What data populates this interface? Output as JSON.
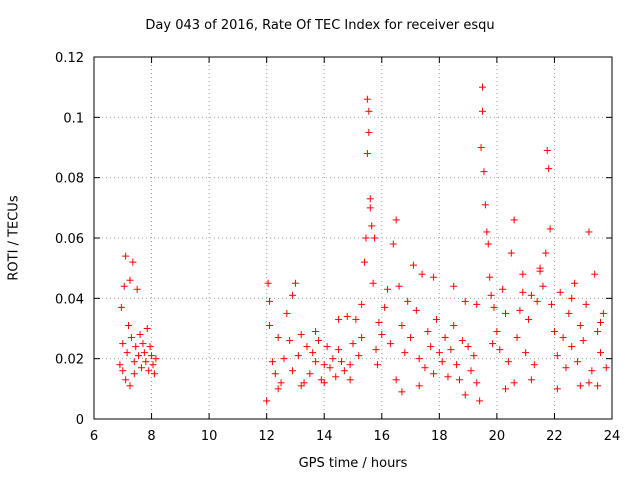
{
  "chart_data": {
    "type": "scatter",
    "title": "Day 043 of 2016, Rate Of TEC Index for receiver esqu",
    "xlabel": "GPS time / hours",
    "ylabel": "ROTI / TECUs",
    "xlim": [
      6,
      24
    ],
    "ylim": [
      0,
      0.12
    ],
    "xticks": [
      "6",
      "8",
      "10",
      "12",
      "14",
      "16",
      "18",
      "20",
      "22",
      "24"
    ],
    "yticks": [
      "0",
      "0.02",
      "0.04",
      "0.06",
      "0.08",
      "0.1",
      "0.12"
    ],
    "grid": true,
    "marker": "+",
    "color": "#ff0000",
    "series": [
      {
        "name": "ROTI",
        "x": [
          6.9,
          6.95,
          7.0,
          7.05,
          7.1,
          7.15,
          7.2,
          7.25,
          7.3,
          7.35,
          7.4,
          7.45,
          7.5,
          7.55,
          7.6,
          7.65,
          7.7,
          7.75,
          7.8,
          7.85,
          7.9,
          7.95,
          8.0,
          8.05,
          8.1,
          8.15,
          7.1,
          7.25,
          7.4,
          7.0,
          12.0,
          12.05,
          12.1,
          12.2,
          12.3,
          12.4,
          12.5,
          12.6,
          12.7,
          12.8,
          12.9,
          13.0,
          13.1,
          13.2,
          13.3,
          13.4,
          13.5,
          13.6,
          13.7,
          13.8,
          13.9,
          14.0,
          14.1,
          14.2,
          14.3,
          14.4,
          14.5,
          14.6,
          14.7,
          14.8,
          14.9,
          15.0,
          15.1,
          15.2,
          15.3,
          15.4,
          15.45,
          15.5,
          15.5,
          15.55,
          15.55,
          15.6,
          15.6,
          15.65,
          15.7,
          15.75,
          15.8,
          15.85,
          15.9,
          16.0,
          16.1,
          16.2,
          16.3,
          16.4,
          16.5,
          16.6,
          16.7,
          16.8,
          16.9,
          17.0,
          17.1,
          17.2,
          17.3,
          17.4,
          17.5,
          17.6,
          17.7,
          17.8,
          17.9,
          18.0,
          18.1,
          18.2,
          18.3,
          18.4,
          18.5,
          18.6,
          18.7,
          18.8,
          18.9,
          19.0,
          19.1,
          19.2,
          19.3,
          19.4,
          19.45,
          19.5,
          19.5,
          19.55,
          19.6,
          19.65,
          19.7,
          19.75,
          19.8,
          19.85,
          19.9,
          20.0,
          20.1,
          20.2,
          20.3,
          20.4,
          20.5,
          20.6,
          20.7,
          20.8,
          20.9,
          21.0,
          21.1,
          21.2,
          21.3,
          21.4,
          21.5,
          21.6,
          21.7,
          21.75,
          21.8,
          21.85,
          21.9,
          22.0,
          22.1,
          22.2,
          22.3,
          22.4,
          22.5,
          22.6,
          22.7,
          22.8,
          22.9,
          23.0,
          23.1,
          23.2,
          23.3,
          23.4,
          23.5,
          23.6,
          23.7,
          23.8,
          16.5,
          16.7,
          17.3,
          18.9,
          20.3,
          20.6,
          21.2,
          22.1,
          22.9,
          23.2,
          23.5,
          12.1,
          12.9,
          13.7,
          14.5,
          15.3,
          17.8,
          18.5,
          19.3,
          20.9,
          21.5,
          22.6,
          23.6,
          12.4,
          13.2,
          14.0,
          14.9
        ],
        "y": [
          0.018,
          0.037,
          0.025,
          0.044,
          0.054,
          0.022,
          0.031,
          0.046,
          0.027,
          0.052,
          0.019,
          0.024,
          0.043,
          0.021,
          0.028,
          0.017,
          0.025,
          0.022,
          0.019,
          0.03,
          0.016,
          0.024,
          0.021,
          0.018,
          0.015,
          0.02,
          0.013,
          0.011,
          0.015,
          0.016,
          0.006,
          0.045,
          0.031,
          0.019,
          0.015,
          0.027,
          0.012,
          0.02,
          0.035,
          0.026,
          0.016,
          0.045,
          0.021,
          0.028,
          0.012,
          0.024,
          0.015,
          0.022,
          0.019,
          0.026,
          0.013,
          0.018,
          0.024,
          0.017,
          0.02,
          0.014,
          0.023,
          0.019,
          0.016,
          0.034,
          0.018,
          0.025,
          0.033,
          0.021,
          0.038,
          0.052,
          0.06,
          0.088,
          0.106,
          0.095,
          0.102,
          0.07,
          0.073,
          0.064,
          0.045,
          0.06,
          0.023,
          0.018,
          0.032,
          0.028,
          0.037,
          0.043,
          0.025,
          0.058,
          0.066,
          0.044,
          0.031,
          0.022,
          0.039,
          0.027,
          0.051,
          0.036,
          0.02,
          0.048,
          0.017,
          0.029,
          0.024,
          0.015,
          0.033,
          0.022,
          0.019,
          0.027,
          0.014,
          0.023,
          0.031,
          0.018,
          0.013,
          0.026,
          0.039,
          0.024,
          0.016,
          0.021,
          0.012,
          0.006,
          0.09,
          0.11,
          0.102,
          0.082,
          0.071,
          0.062,
          0.058,
          0.047,
          0.041,
          0.025,
          0.037,
          0.029,
          0.023,
          0.043,
          0.035,
          0.019,
          0.055,
          0.066,
          0.027,
          0.036,
          0.048,
          0.022,
          0.033,
          0.041,
          0.018,
          0.039,
          0.05,
          0.044,
          0.055,
          0.089,
          0.083,
          0.063,
          0.038,
          0.029,
          0.021,
          0.042,
          0.027,
          0.017,
          0.035,
          0.024,
          0.045,
          0.019,
          0.031,
          0.026,
          0.038,
          0.062,
          0.016,
          0.048,
          0.029,
          0.022,
          0.035,
          0.017,
          0.013,
          0.009,
          0.011,
          0.008,
          0.01,
          0.012,
          0.013,
          0.01,
          0.011,
          0.012,
          0.011,
          0.039,
          0.041,
          0.029,
          0.033,
          0.027,
          0.047,
          0.044,
          0.038,
          0.042,
          0.049,
          0.04,
          0.032,
          0.01,
          0.011,
          0.012,
          0.013
        ]
      }
    ]
  }
}
